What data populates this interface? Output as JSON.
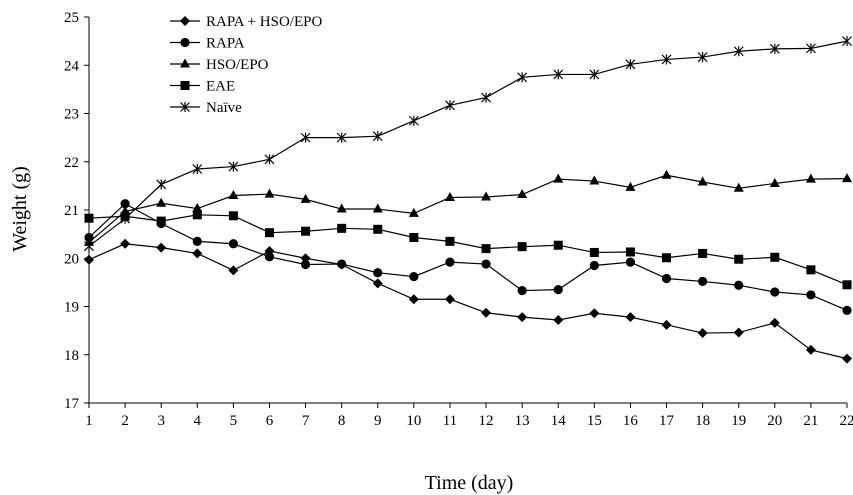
{
  "chart_data": {
    "type": "line",
    "title": "",
    "xlabel": "Time (day)",
    "ylabel": "Weight (g)",
    "ylim": [
      17,
      25
    ],
    "yticks": [
      17,
      18,
      19,
      20,
      21,
      22,
      23,
      24,
      25
    ],
    "grid": false,
    "legend_position": "top-left",
    "x": [
      1,
      2,
      3,
      4,
      5,
      6,
      7,
      8,
      9,
      10,
      11,
      12,
      13,
      14,
      15,
      16,
      17,
      18,
      19,
      20,
      21,
      22
    ],
    "x_tick_labels": [
      "1",
      "2",
      "3",
      "4",
      "5",
      "6",
      "7",
      "8",
      "9",
      "10",
      "11",
      "12",
      "13",
      "14",
      "15",
      "16",
      "17",
      "18",
      "19",
      "20",
      "21",
      "22"
    ],
    "series": [
      {
        "name": "RAPA + HSO/EPO",
        "marker": "diamond",
        "values": [
          19.97,
          20.3,
          20.22,
          20.1,
          19.75,
          20.15,
          20.0,
          19.87,
          19.48,
          19.15,
          19.15,
          18.87,
          18.78,
          18.72,
          18.86,
          18.78,
          18.62,
          18.45,
          18.46,
          18.66,
          18.1,
          17.92
        ]
      },
      {
        "name": "RAPA",
        "marker": "circle",
        "values": [
          20.43,
          21.13,
          20.72,
          20.35,
          20.3,
          20.03,
          19.87,
          19.88,
          19.7,
          19.62,
          19.92,
          19.88,
          19.33,
          19.35,
          19.85,
          19.92,
          19.58,
          19.52,
          19.44,
          19.3,
          19.24,
          18.92
        ]
      },
      {
        "name": "HSO/EPO",
        "marker": "triangle",
        "values": [
          20.33,
          20.97,
          21.14,
          21.03,
          21.3,
          21.33,
          21.22,
          21.02,
          21.02,
          20.93,
          21.26,
          21.27,
          21.32,
          21.64,
          21.6,
          21.47,
          21.72,
          21.58,
          21.45,
          21.55,
          21.64,
          21.65
        ]
      },
      {
        "name": "EAE",
        "marker": "square",
        "values": [
          20.83,
          20.87,
          20.77,
          20.9,
          20.88,
          20.53,
          20.56,
          20.62,
          20.6,
          20.43,
          20.35,
          20.2,
          20.24,
          20.27,
          20.12,
          20.13,
          20.01,
          20.1,
          19.98,
          20.02,
          19.76,
          19.45
        ]
      },
      {
        "name": "Naïve",
        "marker": "asterisk",
        "values": [
          20.25,
          20.82,
          21.53,
          21.85,
          21.9,
          22.05,
          22.5,
          22.5,
          22.53,
          22.85,
          23.17,
          23.33,
          23.75,
          23.81,
          23.81,
          24.02,
          24.12,
          24.17,
          24.29,
          24.34,
          24.35,
          24.5
        ]
      }
    ]
  }
}
